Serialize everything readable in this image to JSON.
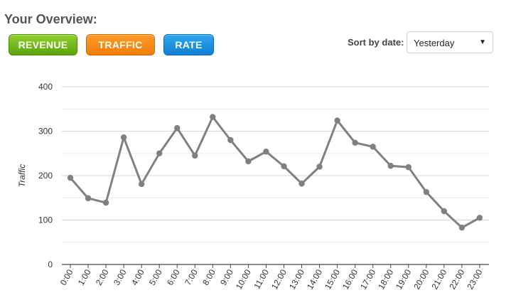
{
  "header": {
    "title": "Your Overview:"
  },
  "tabs": [
    {
      "label": "REVENUE"
    },
    {
      "label": "TRAFFIC"
    },
    {
      "label": "RATE"
    }
  ],
  "sort": {
    "label": "Sort by date:",
    "selected": "Yesterday",
    "arrow_icon": "triangle-down-icon"
  },
  "colors": {
    "revenue": "#6bb51c",
    "traffic": "#f7861a",
    "rate": "#1f92e0",
    "series_line": "#808080"
  },
  "chart_data": {
    "type": "line",
    "ylabel": "Traffic",
    "xlabel": "",
    "ylim": [
      0,
      400
    ],
    "yticks": [
      0,
      100,
      200,
      300,
      400
    ],
    "grid": true,
    "categories": [
      "0:00",
      "1:00",
      "2:00",
      "3:00",
      "4:00",
      "5:00",
      "6:00",
      "7:00",
      "8:00",
      "9:00",
      "10:00",
      "11:00",
      "12:00",
      "13:00",
      "14:00",
      "15:00",
      "16:00",
      "17:00",
      "18:00",
      "19:00",
      "20:00",
      "21:00",
      "22:00",
      "23:00"
    ],
    "series": [
      {
        "values": [
          195,
          149,
          139,
          286,
          181,
          250,
          307,
          245,
          332,
          280,
          232,
          254,
          221,
          182,
          220,
          324,
          274,
          265,
          222,
          219,
          163,
          120,
          83,
          105
        ]
      }
    ]
  }
}
